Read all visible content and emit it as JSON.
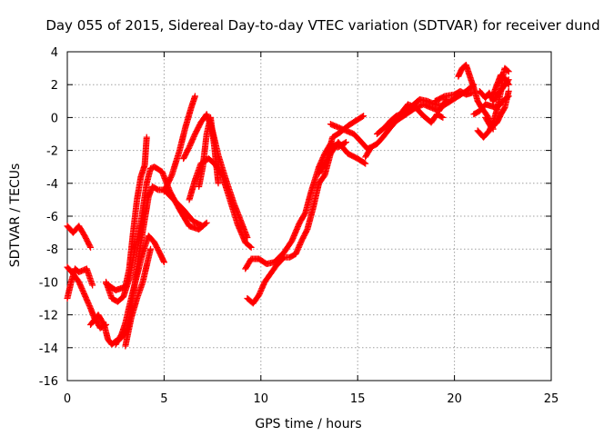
{
  "chart_data": {
    "type": "scatter",
    "title": "Day 055 of 2015, Sidereal Day-to-day VTEC variation (SDTVAR) for receiver dund",
    "xlabel": "GPS time / hours",
    "ylabel": "SDTVAR / TECUs",
    "xlim": [
      0,
      25
    ],
    "ylim": [
      -16,
      4
    ],
    "xticks": [
      0,
      5,
      10,
      15,
      20,
      25
    ],
    "yticks": [
      -16,
      -14,
      -12,
      -10,
      -8,
      -6,
      -4,
      -2,
      0,
      2,
      4
    ],
    "grid": true,
    "marker": "+",
    "color": "#ff0000",
    "series": [
      {
        "tracks": [
          [
            [
              0.0,
              -6.6
            ],
            [
              0.3,
              -7.0
            ],
            [
              0.6,
              -6.6
            ],
            [
              0.9,
              -7.2
            ],
            [
              1.2,
              -7.9
            ]
          ],
          [
            [
              0.0,
              -11.0
            ],
            [
              0.2,
              -10.0
            ],
            [
              0.4,
              -9.2
            ],
            [
              0.6,
              -9.4
            ],
            [
              1.0,
              -9.2
            ],
            [
              1.3,
              -10.2
            ]
          ],
          [
            [
              0.0,
              -9.1
            ],
            [
              0.3,
              -9.5
            ],
            [
              0.6,
              -10.0
            ],
            [
              0.9,
              -10.8
            ],
            [
              1.2,
              -11.6
            ],
            [
              1.4,
              -12.2
            ],
            [
              1.7,
              -12.8
            ],
            [
              2.0,
              -12.6
            ]
          ],
          [
            [
              1.2,
              -12.6
            ],
            [
              1.6,
              -12.0
            ],
            [
              1.9,
              -12.6
            ],
            [
              2.1,
              -13.5
            ],
            [
              2.3,
              -13.8
            ],
            [
              2.5,
              -13.6
            ],
            [
              2.8,
              -13.4
            ],
            [
              3.1,
              -12.9
            ],
            [
              3.3,
              -11.5
            ],
            [
              3.5,
              -10.0
            ],
            [
              3.7,
              -8.3
            ],
            [
              4.0,
              -6.2
            ],
            [
              4.2,
              -4.8
            ],
            [
              4.4,
              -4.2
            ],
            [
              4.7,
              -4.4
            ],
            [
              5.0,
              -4.4
            ],
            [
              5.5,
              -5.0
            ],
            [
              6.0,
              -5.6
            ],
            [
              6.5,
              -6.3
            ],
            [
              7.0,
              -6.6
            ]
          ],
          [
            [
              2.0,
              -10.0
            ],
            [
              2.3,
              -11.0
            ],
            [
              2.6,
              -11.2
            ],
            [
              2.9,
              -10.9
            ],
            [
              3.2,
              -9.8
            ],
            [
              3.5,
              -8.0
            ],
            [
              3.8,
              -6.4
            ],
            [
              4.1,
              -4.0
            ],
            [
              4.3,
              -3.1
            ],
            [
              4.5,
              -3.0
            ],
            [
              4.9,
              -3.3
            ],
            [
              5.3,
              -4.5
            ],
            [
              5.8,
              -5.6
            ],
            [
              6.3,
              -6.6
            ],
            [
              6.8,
              -6.8
            ],
            [
              7.2,
              -6.4
            ]
          ],
          [
            [
              2.0,
              -10.1
            ],
            [
              2.5,
              -10.5
            ],
            [
              3.0,
              -10.3
            ],
            [
              3.2,
              -9.2
            ],
            [
              3.4,
              -7.0
            ],
            [
              3.6,
              -5.0
            ],
            [
              3.8,
              -3.6
            ],
            [
              4.0,
              -2.9
            ],
            [
              4.1,
              -1.2
            ]
          ],
          [
            [
              2.5,
              -13.8
            ],
            [
              2.8,
              -13.2
            ],
            [
              3.0,
              -12.5
            ],
            [
              3.3,
              -11.0
            ],
            [
              3.6,
              -9.6
            ],
            [
              3.9,
              -8.2
            ],
            [
              4.2,
              -7.2
            ],
            [
              4.5,
              -7.6
            ],
            [
              4.8,
              -8.3
            ],
            [
              5.0,
              -8.8
            ]
          ],
          [
            [
              3.0,
              -13.9
            ],
            [
              3.3,
              -12.2
            ],
            [
              3.6,
              -11.0
            ],
            [
              3.9,
              -10.0
            ],
            [
              4.1,
              -9.0
            ],
            [
              4.3,
              -8.0
            ]
          ],
          [
            [
              5.0,
              -4.5
            ],
            [
              5.4,
              -3.5
            ],
            [
              5.8,
              -2.0
            ],
            [
              6.1,
              -0.6
            ],
            [
              6.4,
              0.6
            ],
            [
              6.6,
              1.3
            ]
          ],
          [
            [
              6.0,
              -2.5
            ],
            [
              6.3,
              -1.8
            ],
            [
              6.6,
              -1.0
            ],
            [
              6.9,
              -0.3
            ],
            [
              7.2,
              0.2
            ],
            [
              7.5,
              -0.8
            ],
            [
              7.8,
              -2.3
            ],
            [
              8.2,
              -3.8
            ],
            [
              8.6,
              -5.2
            ],
            [
              9.0,
              -6.4
            ],
            [
              9.3,
              -7.3
            ]
          ],
          [
            [
              6.3,
              -5.0
            ],
            [
              6.6,
              -3.8
            ],
            [
              6.9,
              -2.8
            ],
            [
              7.3,
              -2.5
            ],
            [
              7.6,
              -2.8
            ],
            [
              8.0,
              -3.5
            ],
            [
              8.4,
              -5.0
            ],
            [
              8.8,
              -6.5
            ],
            [
              9.2,
              -7.6
            ],
            [
              9.5,
              -7.9
            ]
          ],
          [
            [
              6.8,
              -4.2
            ],
            [
              7.0,
              -3.0
            ],
            [
              7.2,
              -1.0
            ],
            [
              7.4,
              0.0
            ],
            [
              7.6,
              -1.8
            ],
            [
              7.8,
              -4.0
            ]
          ],
          [
            [
              9.2,
              -9.2
            ],
            [
              9.5,
              -8.6
            ],
            [
              9.9,
              -8.6
            ],
            [
              10.3,
              -8.9
            ],
            [
              10.7,
              -8.8
            ],
            [
              11.2,
              -8.2
            ],
            [
              11.6,
              -7.5
            ],
            [
              12.0,
              -6.4
            ],
            [
              12.3,
              -5.8
            ],
            [
              12.6,
              -4.5
            ],
            [
              13.0,
              -3.0
            ],
            [
              13.3,
              -2.2
            ],
            [
              13.6,
              -1.6
            ],
            [
              14.0,
              -1.8
            ],
            [
              14.4,
              -1.5
            ]
          ],
          [
            [
              9.3,
              -11.0
            ],
            [
              9.6,
              -11.3
            ],
            [
              9.9,
              -10.8
            ],
            [
              10.2,
              -10.0
            ],
            [
              10.5,
              -9.5
            ],
            [
              10.8,
              -9.0
            ],
            [
              11.2,
              -8.5
            ],
            [
              11.5,
              -8.5
            ],
            [
              11.8,
              -8.3
            ],
            [
              12.1,
              -7.5
            ],
            [
              12.4,
              -6.8
            ],
            [
              12.7,
              -5.5
            ],
            [
              13.0,
              -4.0
            ],
            [
              13.3,
              -3.5
            ],
            [
              13.6,
              -2.2
            ],
            [
              14.0,
              -1.5
            ],
            [
              14.5,
              -2.2
            ],
            [
              15.0,
              -2.5
            ],
            [
              15.4,
              -2.8
            ]
          ],
          [
            [
              13.0,
              -3.4
            ],
            [
              13.4,
              -2.6
            ],
            [
              13.7,
              -1.2
            ],
            [
              14.1,
              -0.9
            ],
            [
              14.5,
              -0.5
            ],
            [
              14.9,
              -0.2
            ],
            [
              15.3,
              0.1
            ]
          ],
          [
            [
              13.6,
              -0.4
            ],
            [
              14.2,
              -0.7
            ],
            [
              14.8,
              -1.0
            ],
            [
              15.2,
              -1.5
            ],
            [
              15.5,
              -1.9
            ],
            [
              15.7,
              -1.8
            ]
          ],
          [
            [
              15.4,
              -2.4
            ],
            [
              15.7,
              -1.8
            ],
            [
              16.0,
              -1.6
            ],
            [
              16.3,
              -1.2
            ],
            [
              16.7,
              -0.6
            ],
            [
              17.0,
              -0.2
            ],
            [
              17.5,
              0.2
            ],
            [
              18.0,
              0.6
            ],
            [
              18.4,
              0.8
            ],
            [
              18.8,
              0.6
            ],
            [
              19.2,
              0.4
            ],
            [
              19.6,
              1.1
            ]
          ],
          [
            [
              16.0,
              -1.0
            ],
            [
              16.4,
              -0.6
            ],
            [
              16.7,
              -0.2
            ],
            [
              17.0,
              0.1
            ],
            [
              17.4,
              0.3
            ],
            [
              17.8,
              0.7
            ],
            [
              18.2,
              1.1
            ],
            [
              18.6,
              1.0
            ],
            [
              19.0,
              0.8
            ],
            [
              19.4,
              0.7
            ],
            [
              19.8,
              1.0
            ],
            [
              20.2,
              1.3
            ],
            [
              20.6,
              1.6
            ],
            [
              21.0,
              2.0
            ]
          ],
          [
            [
              17.2,
              0.2
            ],
            [
              17.6,
              0.8
            ],
            [
              18.0,
              0.6
            ],
            [
              18.4,
              0.1
            ],
            [
              18.8,
              -0.3
            ],
            [
              19.1,
              0.2
            ],
            [
              19.4,
              0.0
            ]
          ],
          [
            [
              19.0,
              1.0
            ],
            [
              19.5,
              1.3
            ],
            [
              20.0,
              1.4
            ],
            [
              20.3,
              1.6
            ],
            [
              20.6,
              1.4
            ],
            [
              20.9,
              1.5
            ]
          ],
          [
            [
              20.2,
              2.5
            ],
            [
              20.4,
              3.0
            ],
            [
              20.6,
              3.2
            ],
            [
              20.8,
              2.5
            ],
            [
              21.0,
              1.8
            ],
            [
              21.2,
              1.0
            ],
            [
              21.4,
              0.6
            ],
            [
              21.7,
              0.1
            ],
            [
              22.0,
              -0.7
            ]
          ],
          [
            [
              21.0,
              0.2
            ],
            [
              21.3,
              0.4
            ],
            [
              21.6,
              0.8
            ],
            [
              21.9,
              0.7
            ],
            [
              22.2,
              0.6
            ],
            [
              22.5,
              1.0
            ],
            [
              22.8,
              1.3
            ]
          ],
          [
            [
              21.3,
              1.6
            ],
            [
              21.6,
              1.2
            ],
            [
              21.8,
              1.5
            ],
            [
              22.0,
              1.0
            ],
            [
              22.3,
              1.5
            ],
            [
              22.5,
              1.8
            ],
            [
              22.8,
              2.3
            ]
          ],
          [
            [
              21.2,
              -0.8
            ],
            [
              21.5,
              -1.2
            ],
            [
              21.8,
              -0.8
            ],
            [
              22.0,
              -0.3
            ],
            [
              22.2,
              0.5
            ],
            [
              22.4,
              1.6
            ],
            [
              22.5,
              2.5
            ],
            [
              22.6,
              3.0
            ],
            [
              22.8,
              2.8
            ]
          ],
          [
            [
              21.6,
              0.0
            ],
            [
              21.9,
              -0.6
            ],
            [
              22.2,
              -0.3
            ],
            [
              22.4,
              0.2
            ],
            [
              22.6,
              0.6
            ],
            [
              22.8,
              1.6
            ]
          ],
          [
            [
              22.0,
              1.4
            ],
            [
              22.2,
              2.0
            ],
            [
              22.4,
              2.6
            ],
            [
              22.6,
              2.4
            ],
            [
              22.8,
              2.0
            ]
          ]
        ]
      }
    ]
  }
}
